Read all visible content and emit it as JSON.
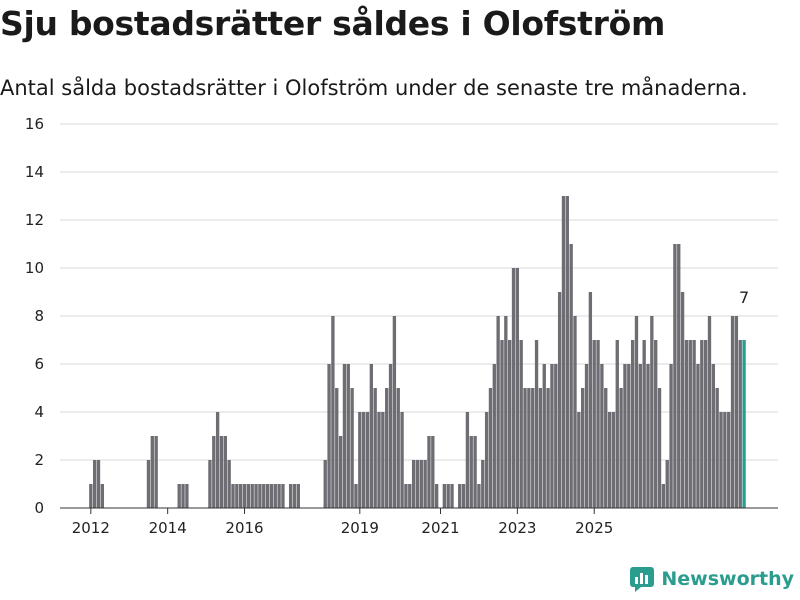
{
  "title": "Sju bostadsrätter såldes i Olofström",
  "subtitle": "Antal sålda bostadsrätter i Olofström under de senaste tre månaderna.",
  "brand": "Newsworthy",
  "colors": {
    "bar": "#6e6d73",
    "highlight": "#2a9d8f",
    "grid": "#d9d9d9"
  },
  "chart_data": {
    "type": "bar",
    "title": "Sju bostadsrätter såldes i Olofström",
    "subtitle": "Antal sålda bostadsrätter i Olofström under de senaste tre månaderna.",
    "ylim": [
      0,
      16
    ],
    "yticks": [
      0,
      2,
      4,
      6,
      8,
      10,
      12,
      14,
      16
    ],
    "xticks": [
      "2012",
      "2014",
      "2016",
      "2019",
      "2021",
      "2023",
      "2025"
    ],
    "grid": true,
    "annotation": {
      "text": "7"
    },
    "series": [
      {
        "values": [
          0,
          0,
          0,
          0,
          0,
          0,
          0,
          1,
          2,
          2,
          1,
          0,
          0,
          0,
          0,
          0,
          0,
          0,
          0,
          0,
          0,
          0,
          2,
          3,
          3,
          0,
          0,
          0,
          0,
          0,
          1,
          1,
          1,
          0,
          0,
          0,
          0,
          0,
          2,
          3,
          4,
          3,
          3,
          2,
          1,
          1,
          1,
          1,
          1,
          1,
          1,
          1,
          1,
          1,
          1,
          1,
          1,
          1,
          0,
          1,
          1,
          1,
          0,
          0,
          0,
          0,
          0,
          0,
          2,
          6,
          8,
          5,
          3,
          6,
          6,
          5,
          1,
          4,
          4,
          4,
          6,
          5,
          4,
          4,
          5,
          6,
          8,
          5,
          4,
          1,
          1,
          2,
          2,
          2,
          2,
          3,
          3,
          1,
          0,
          1,
          1,
          1,
          0,
          1,
          1,
          4,
          3,
          3,
          1,
          2,
          4,
          5,
          6,
          8,
          7,
          8,
          7,
          10,
          10,
          7,
          5,
          5,
          5,
          7,
          5,
          6,
          5,
          6,
          6,
          9,
          13,
          13,
          11,
          8,
          4,
          5,
          6,
          9,
          7,
          7,
          6,
          5,
          4,
          4,
          7,
          5,
          6,
          6,
          7,
          8,
          6,
          7,
          6,
          8,
          7,
          5,
          1,
          2,
          6,
          11,
          11,
          9,
          7,
          7,
          7,
          6,
          7,
          7,
          8,
          6,
          5,
          4,
          4,
          4,
          8,
          8,
          7,
          7
        ]
      }
    ]
  }
}
